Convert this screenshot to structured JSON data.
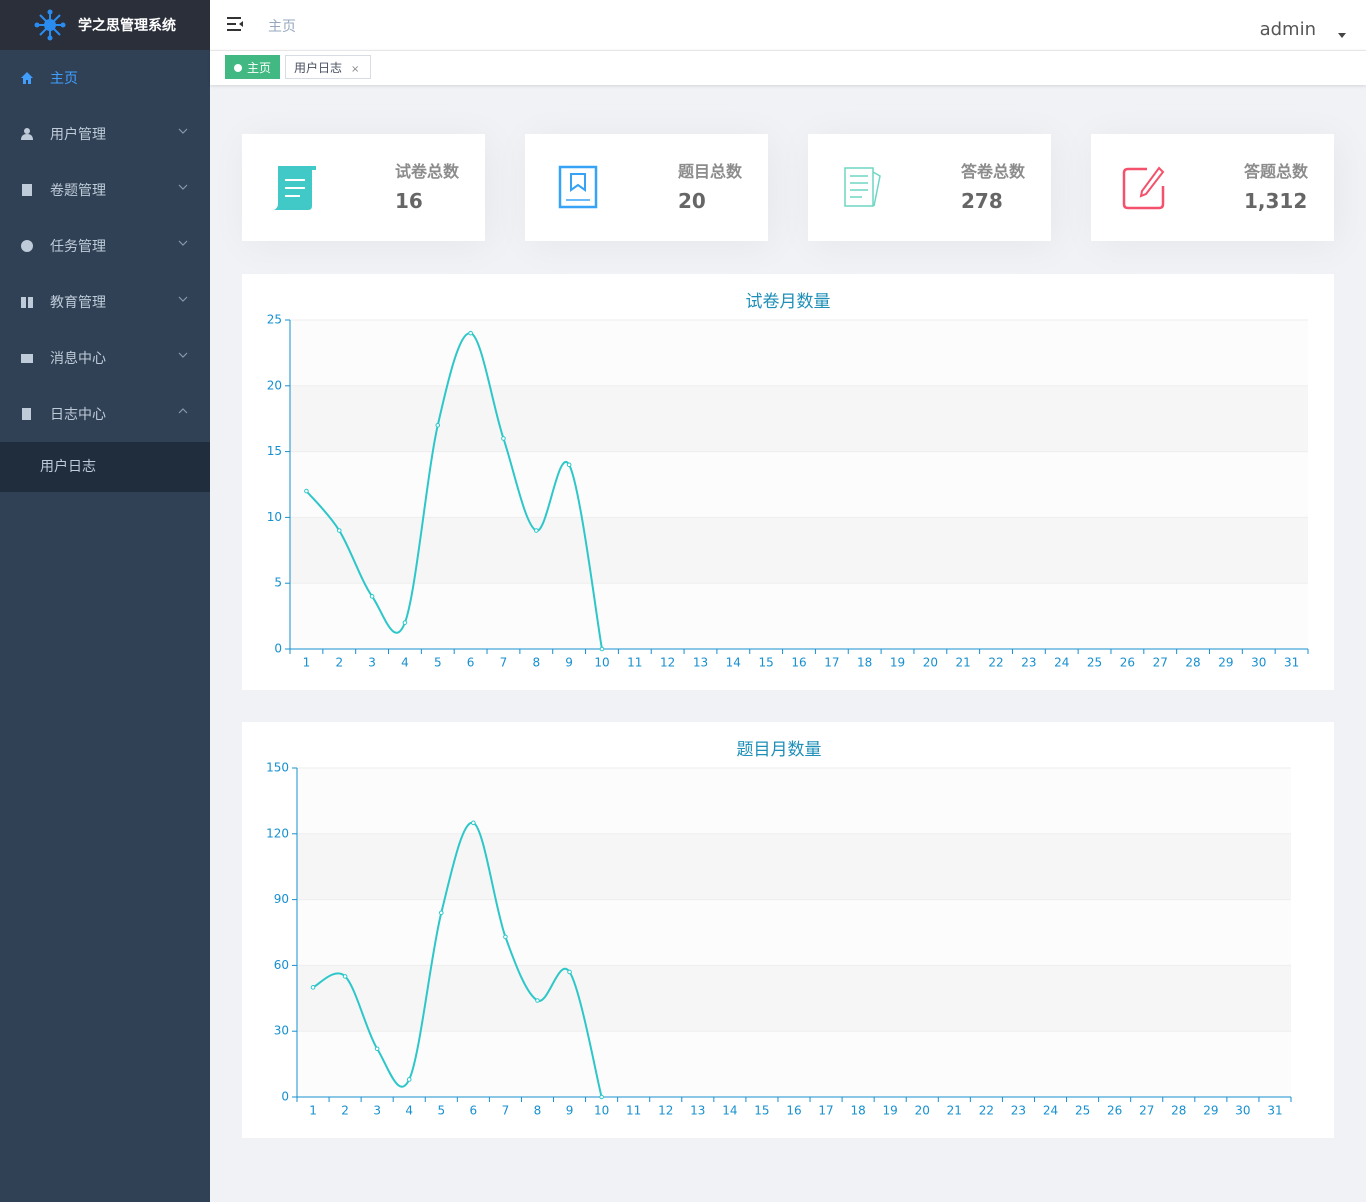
{
  "sidebar": {
    "title": "学之思管理系统",
    "menu": [
      "主页",
      "用户管理",
      "卷题管理",
      "任务管理",
      "教育管理",
      "消息中心",
      "日志中心"
    ],
    "submenu": [
      "用户日志"
    ]
  },
  "header": {
    "breadcrumb": "主页",
    "user": "admin"
  },
  "tabs": [
    "主页",
    "用户日志"
  ],
  "cards": [
    {
      "label": "试卷总数",
      "value": "16"
    },
    {
      "label": "题目总数",
      "value": "20"
    },
    {
      "label": "答卷总数",
      "value": "278"
    },
    {
      "label": "答题总数",
      "value": "1,312"
    }
  ],
  "chart_data": [
    {
      "type": "line",
      "title": "试卷月数量",
      "color": "#2ec7c9",
      "grid": true,
      "categories": [
        "1",
        "2",
        "3",
        "4",
        "5",
        "6",
        "7",
        "8",
        "9",
        "10",
        "11",
        "12",
        "13",
        "14",
        "15",
        "16",
        "17",
        "18",
        "19",
        "20",
        "21",
        "22",
        "23",
        "24",
        "25",
        "26",
        "27",
        "28",
        "29",
        "30",
        "31"
      ],
      "values": [
        12,
        9,
        4,
        2,
        17,
        24,
        16,
        9,
        14,
        0,
        null,
        null,
        null,
        null,
        null,
        null,
        null,
        null,
        null,
        null,
        null,
        null,
        null,
        null,
        null,
        null,
        null,
        null,
        null,
        null,
        null
      ],
      "ylim": [
        0,
        25
      ],
      "yticks": [
        0,
        5,
        10,
        15,
        20,
        25
      ]
    },
    {
      "type": "line",
      "title": "题目月数量",
      "color": "#2ec7c9",
      "grid": true,
      "categories": [
        "1",
        "2",
        "3",
        "4",
        "5",
        "6",
        "7",
        "8",
        "9",
        "10",
        "11",
        "12",
        "13",
        "14",
        "15",
        "16",
        "17",
        "18",
        "19",
        "20",
        "21",
        "22",
        "23",
        "24",
        "25",
        "26",
        "27",
        "28",
        "29",
        "30",
        "31"
      ],
      "values": [
        50,
        55,
        22,
        8,
        84,
        125,
        73,
        44,
        57,
        0,
        null,
        null,
        null,
        null,
        null,
        null,
        null,
        null,
        null,
        null,
        null,
        null,
        null,
        null,
        null,
        null,
        null,
        null,
        null,
        null,
        null
      ],
      "ylim": [
        0,
        150
      ],
      "yticks": [
        0,
        30,
        60,
        90,
        120,
        150
      ]
    }
  ]
}
